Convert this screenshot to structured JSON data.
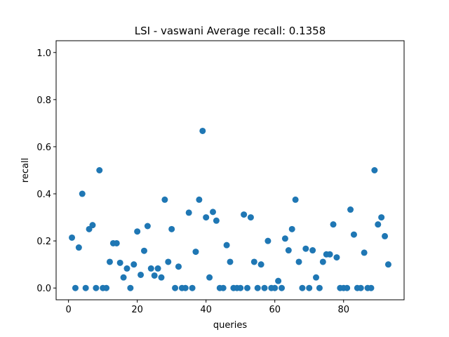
{
  "chart_data": {
    "type": "scatter",
    "title": "LSI - vaswani  Average recall: 0.1358",
    "xlabel": "queries",
    "ylabel": "recall",
    "xlim": [
      -3.6,
      97.6
    ],
    "ylim": [
      -0.05,
      1.05
    ],
    "xticks": [
      0,
      20,
      40,
      60,
      80
    ],
    "yticks": [
      0.0,
      0.2,
      0.4,
      0.6,
      0.8,
      1.0
    ],
    "ytick_labels": [
      "0.0",
      "0.2",
      "0.4",
      "0.6",
      "0.8",
      "1.0"
    ],
    "grid": false,
    "marker_color": "#1f77b4",
    "x": [
      1,
      2,
      3,
      4,
      5,
      6,
      7,
      8,
      9,
      10,
      11,
      12,
      13,
      14,
      15,
      16,
      17,
      18,
      19,
      20,
      21,
      22,
      23,
      24,
      25,
      26,
      27,
      28,
      29,
      30,
      31,
      32,
      33,
      34,
      35,
      36,
      37,
      38,
      39,
      40,
      41,
      42,
      43,
      44,
      45,
      46,
      47,
      48,
      49,
      50,
      51,
      52,
      53,
      54,
      55,
      56,
      57,
      58,
      59,
      60,
      61,
      62,
      63,
      64,
      65,
      66,
      67,
      68,
      69,
      70,
      71,
      72,
      73,
      74,
      75,
      76,
      77,
      78,
      79,
      80,
      81,
      82,
      83,
      84,
      85,
      86,
      87,
      88,
      89,
      90,
      91,
      92,
      93
    ],
    "y": [
      0.214,
      0,
      0.172,
      0.4,
      0,
      0.25,
      0.267,
      0,
      0.5,
      0,
      0,
      0.111,
      0.19,
      0.19,
      0.107,
      0.045,
      0.083,
      0,
      0.1,
      0.24,
      0.056,
      0.158,
      0.263,
      0.083,
      0.053,
      0.083,
      0.045,
      0.375,
      0.111,
      0.25,
      0,
      0.091,
      0,
      0,
      0.32,
      0,
      0.154,
      0.375,
      0.667,
      0.3,
      0.045,
      0.323,
      0.286,
      0,
      0,
      0.182,
      0.111,
      0,
      0,
      0,
      0.312,
      0,
      0.3,
      0.111,
      0,
      0.1,
      0,
      0.2,
      0,
      0,
      0.03,
      0,
      0.21,
      0.16,
      0.25,
      0.375,
      0.111,
      0,
      0.167,
      0,
      0.16,
      0.045,
      0,
      0.111,
      0.143,
      0.143,
      0.27,
      0.13,
      0,
      0,
      0,
      0.333,
      0.227,
      0,
      0,
      0.15,
      0,
      0,
      0.5,
      0.27,
      0.3,
      0.22,
      0.1
    ]
  }
}
